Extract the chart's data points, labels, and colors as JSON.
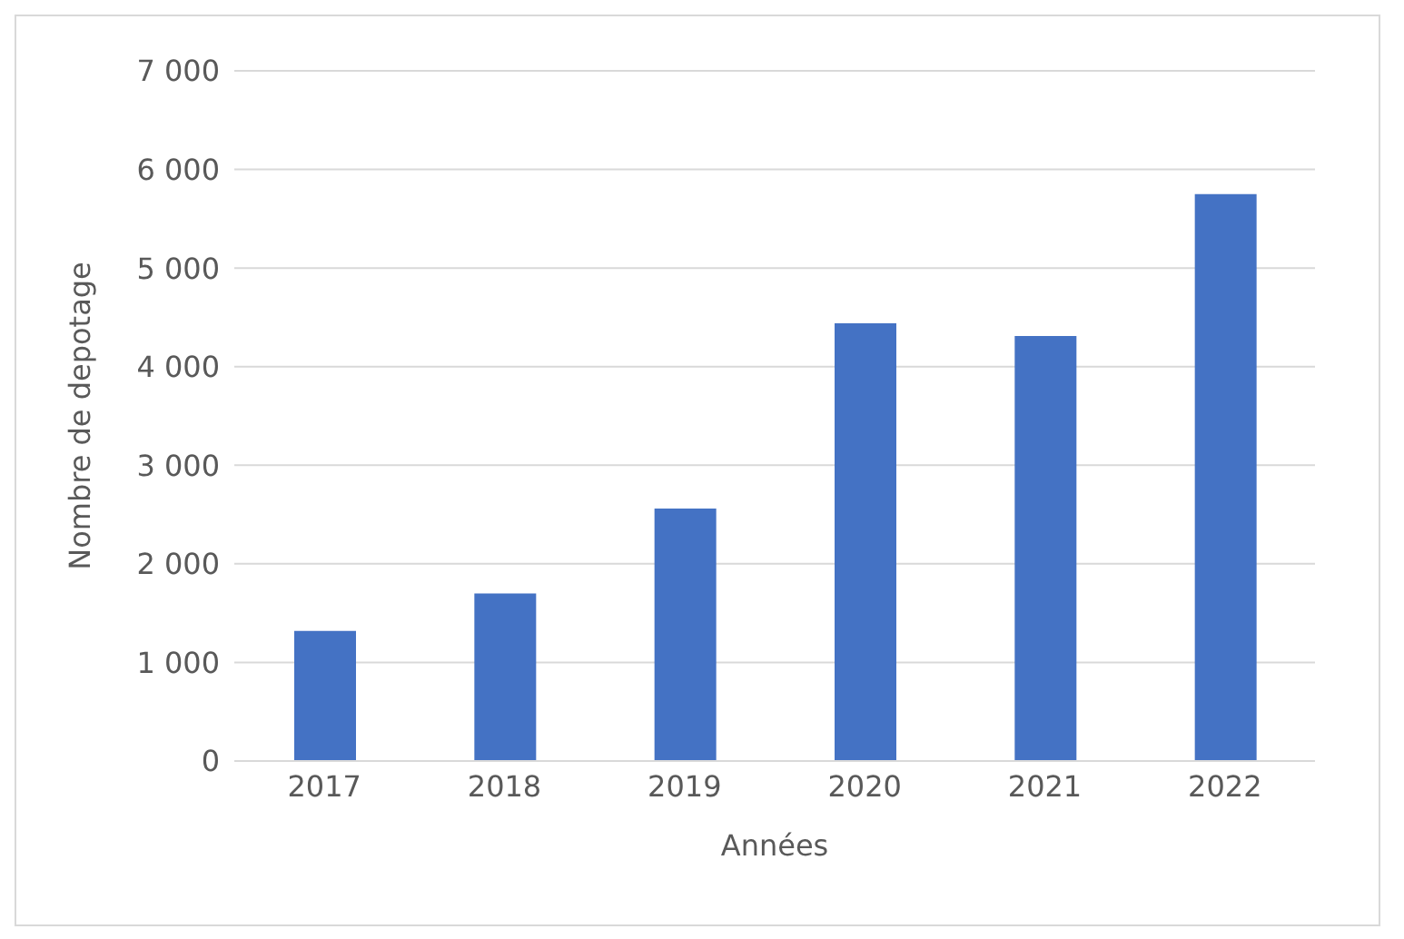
{
  "chart_data": {
    "type": "bar",
    "xlabel": "Années",
    "ylabel": "Nombre de depotage",
    "categories": [
      "2017",
      "2018",
      "2019",
      "2020",
      "2021",
      "2022"
    ],
    "values": [
      1320,
      1700,
      2560,
      4440,
      4310,
      5750
    ],
    "color": "#4472c4",
    "ylim": [
      0,
      7000
    ],
    "yticks": [
      0,
      {
        "value": 1000,
        "label": "1 000"
      },
      {
        "value": 2000,
        "label": "2 000"
      },
      {
        "value": 3000,
        "label": "3 000"
      },
      {
        "value": 4000,
        "label": "4 000"
      },
      {
        "value": 5000,
        "label": "5 000"
      },
      {
        "value": 6000,
        "label": "6 000"
      },
      {
        "value": 7000,
        "label": "7 000"
      }
    ],
    "grid": true
  }
}
